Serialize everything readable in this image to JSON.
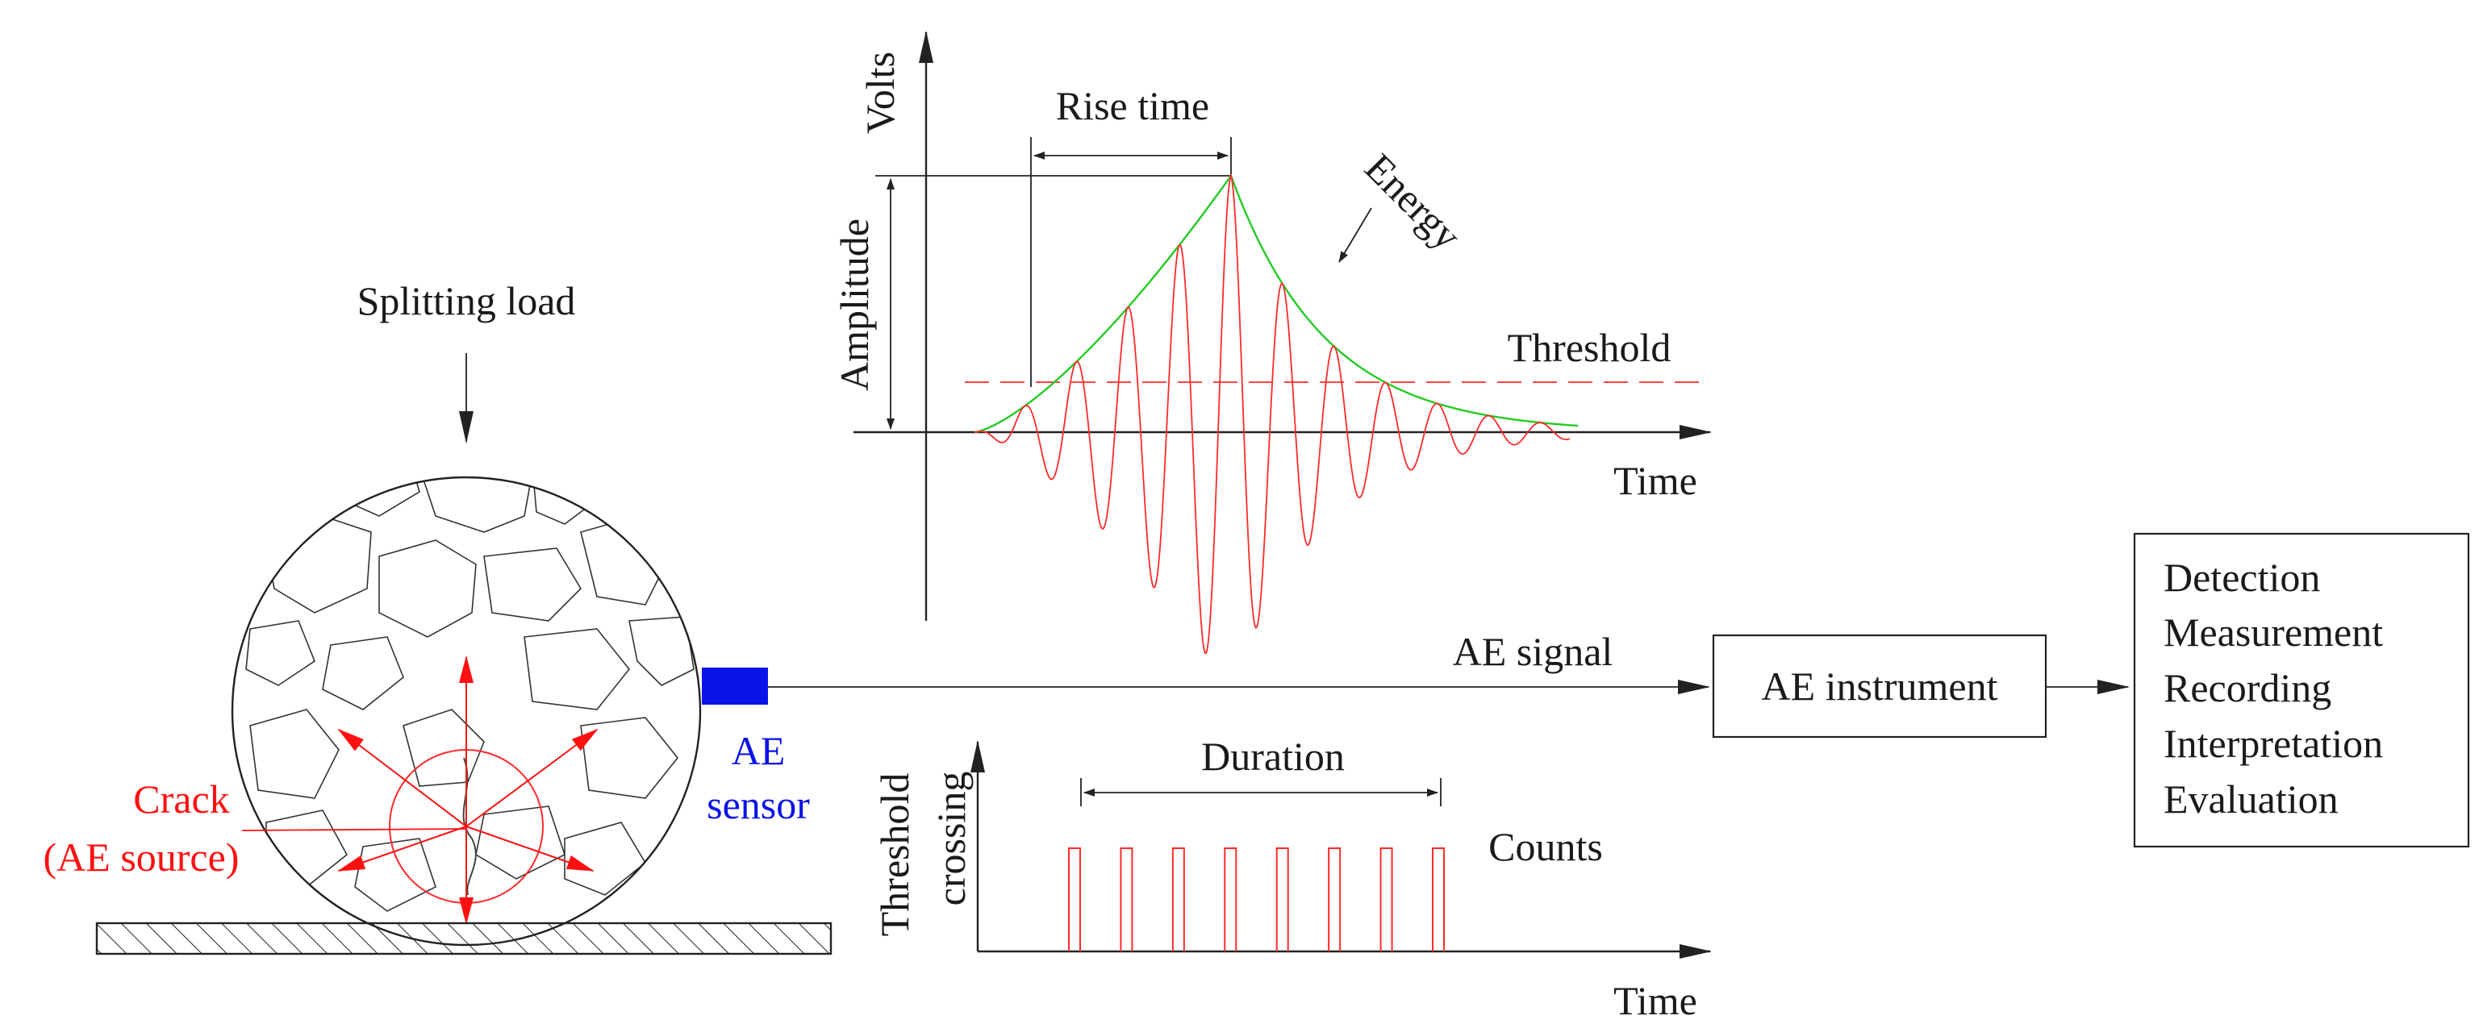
{
  "labels": {
    "splitting_load": "Splitting load",
    "crack_line1": "Crack",
    "crack_line2": "(AE source)",
    "sensor_line1": "AE",
    "sensor_line2": "sensor",
    "ae_signal": "AE signal",
    "ae_instrument": "AE instrument",
    "volts": "Volts",
    "rise_time": "Rise time",
    "energy": "Energy",
    "amplitude": "Amplitude",
    "threshold": "Threshold",
    "time_top": "Time",
    "duration": "Duration",
    "counts": "Counts",
    "threshold_crossing_line1": "Threshold",
    "threshold_crossing_line2": "crossing",
    "time_bottom": "Time"
  },
  "functions": [
    "Detection",
    "Measurement",
    "Recording",
    "Interpretation",
    "Evaluation"
  ],
  "waveform": {
    "peak_count": 11,
    "count_pulses": 8
  },
  "colors": {
    "waveform": "#ff2a2a",
    "envelope": "#22cc22",
    "threshold": "#ff4444",
    "sensor": "#0a14e6",
    "crack_label": "#ff1010",
    "line": "#222222"
  }
}
